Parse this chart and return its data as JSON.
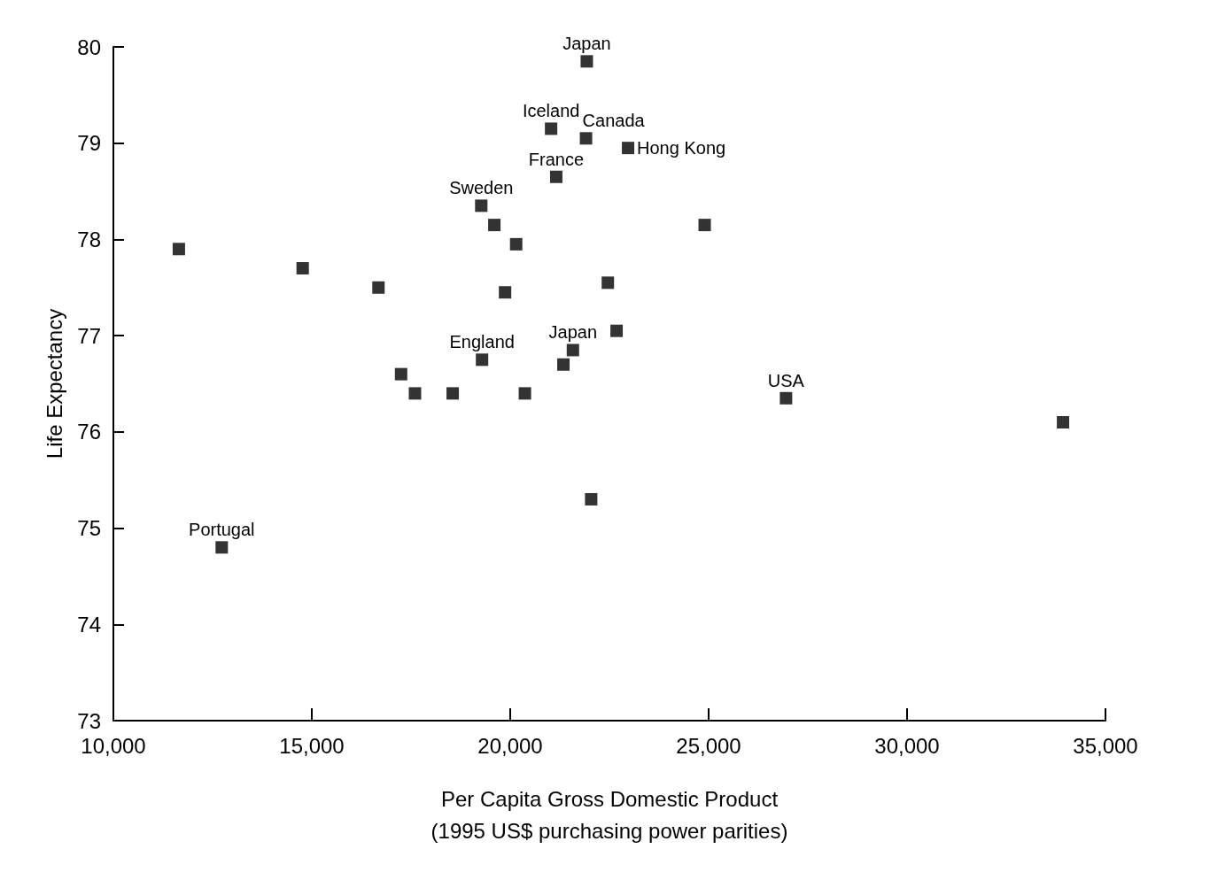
{
  "chart_data": {
    "type": "scatter",
    "xlabel": "Per Capita Gross Domestic Product\n(1995 US$ purchasing power parities)",
    "ylabel": "Life Expectancy",
    "x": [
      11650,
      14770,
      16680,
      17250,
      17600,
      18550,
      19270,
      19290,
      19600,
      19870,
      20150,
      20370,
      21030,
      21160,
      21340,
      21580,
      21930,
      21910,
      22040,
      22460,
      22680,
      22970,
      24900,
      26950,
      33930,
      12730
    ],
    "values": [
      77.9,
      77.7,
      77.5,
      76.6,
      76.4,
      76.4,
      78.35,
      76.75,
      78.15,
      77.45,
      77.95,
      76.4,
      79.15,
      78.65,
      76.7,
      76.85,
      79.85,
      79.05,
      75.3,
      77.55,
      77.05,
      78.95,
      78.15,
      76.35,
      76.1,
      74.8
    ],
    "color": "#000000",
    "marker": "square",
    "grid": false,
    "xlim": [
      10000,
      35000
    ],
    "xticks": [
      {
        "value": 10000,
        "label": "10,000"
      },
      {
        "value": 15000,
        "label": "15,000"
      },
      {
        "value": 20000,
        "label": "20,000"
      },
      {
        "value": 25000,
        "label": "25,000"
      },
      {
        "value": 30000,
        "label": "30,000"
      },
      {
        "value": 35000,
        "label": "35,000"
      }
    ],
    "ylim": [
      73,
      80
    ],
    "yticks": [
      73,
      74,
      75,
      76,
      77,
      78,
      79,
      80
    ],
    "annotations": [
      {
        "text": "Japan",
        "x": 21930,
        "y": 79.85
      },
      {
        "text": "Iceland",
        "x": 21030,
        "y": 79.15
      },
      {
        "text": "Canada",
        "x": 21910,
        "y": 79.05
      },
      {
        "text": "Hong Kong",
        "x": 22970,
        "y": 78.95
      },
      {
        "text": "France",
        "x": 21160,
        "y": 78.65
      },
      {
        "text": "Sweden",
        "x": 19270,
        "y": 78.35
      },
      {
        "text": "England",
        "x": 19290,
        "y": 76.75
      },
      {
        "text": "Japan",
        "x": 21580,
        "y": 76.85
      },
      {
        "text": "USA",
        "x": 26950,
        "y": 76.35
      },
      {
        "text": "Portugal",
        "x": 12730,
        "y": 74.8
      }
    ]
  }
}
